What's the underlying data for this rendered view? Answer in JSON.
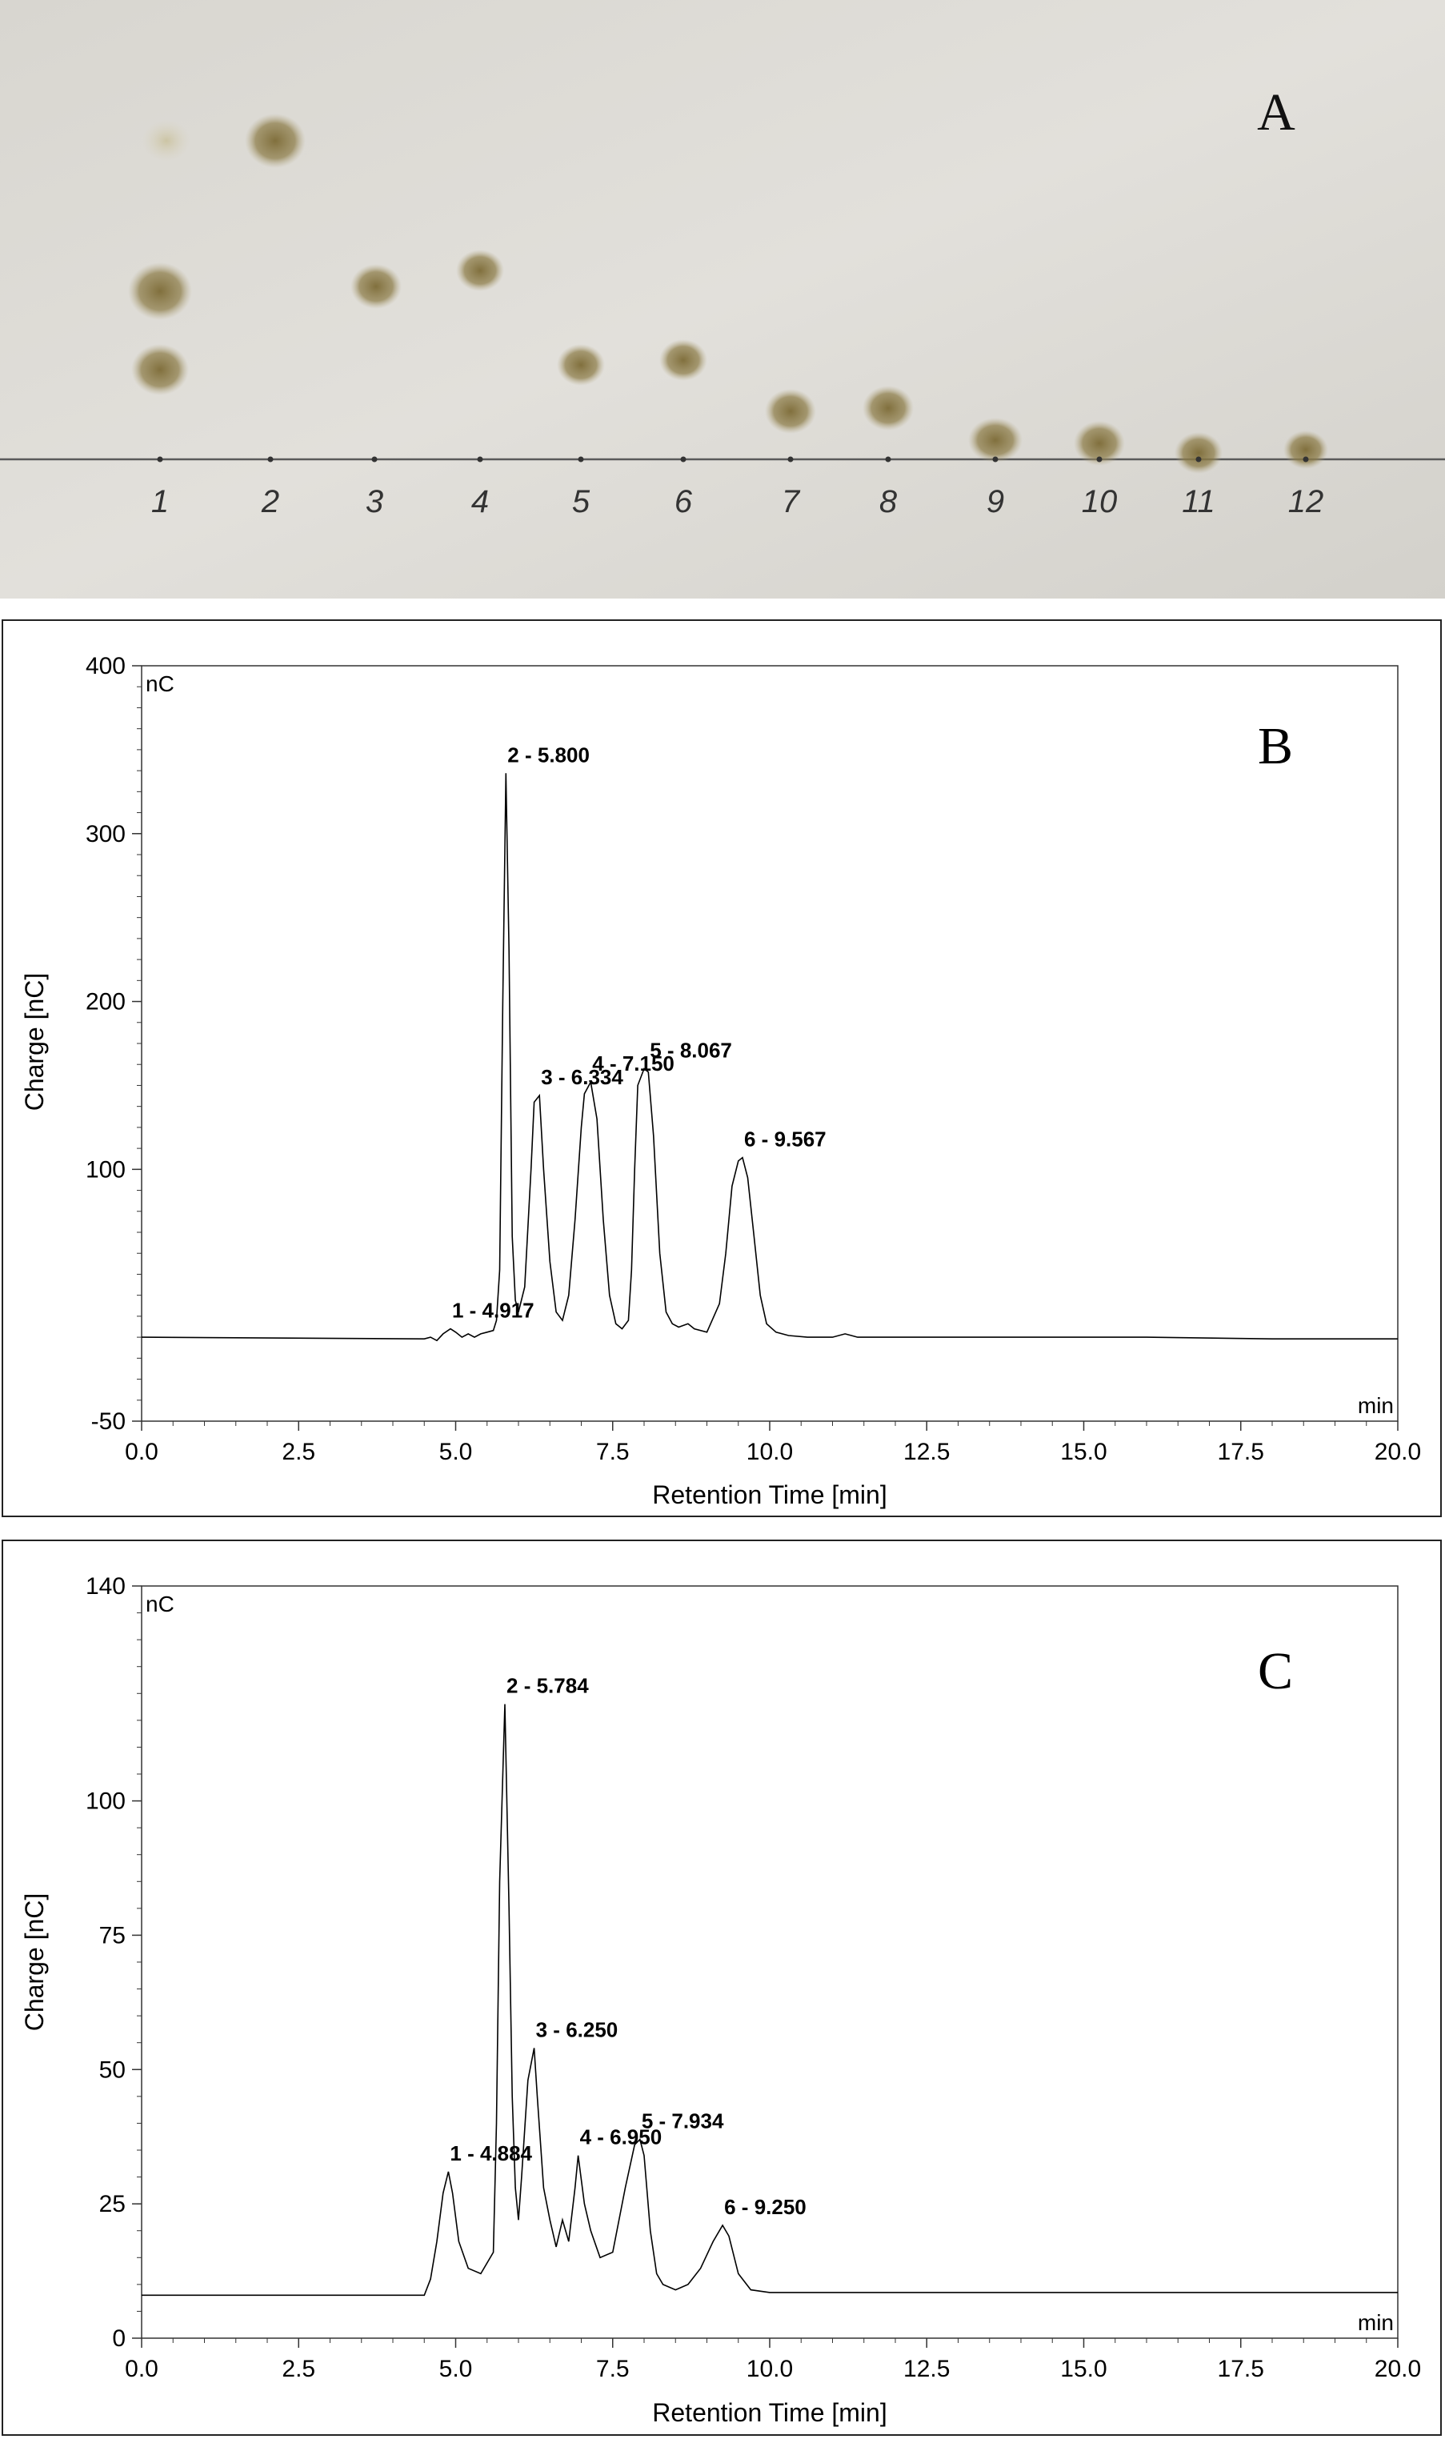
{
  "panel_a": {
    "label": "A",
    "lane_labels": [
      "1",
      "2",
      "3",
      "4",
      "5",
      "6",
      "7",
      "8",
      "9",
      "10",
      "11",
      "12"
    ],
    "colors": {
      "plate": "#dedcd6",
      "spot": "#8a7a45",
      "baseline": "#555555",
      "pencil": "#444444"
    }
  },
  "chart_data": [
    {
      "type": "line",
      "panel_label": "B",
      "y_unit": "nC",
      "x_unit": "min",
      "xlabel": "Retention Time [min]",
      "ylabel": "Charge [nC]",
      "xlim": [
        0.0,
        20.0
      ],
      "ylim": [
        -50,
        400
      ],
      "xticks": [
        0.0,
        2.5,
        5.0,
        7.5,
        10.0,
        12.5,
        15.0,
        17.5,
        20.0
      ],
      "xtick_labels": [
        "0.0",
        "2.5",
        "5.0",
        "7.5",
        "10.0",
        "12.5",
        "15.0",
        "17.5",
        "20.0"
      ],
      "yticks": [
        -50,
        100,
        200,
        300,
        400
      ],
      "ytick_labels": [
        "-50",
        "100",
        "200",
        "300",
        "400"
      ],
      "grid": false,
      "x": [
        0,
        4.5,
        4.6,
        4.7,
        4.8,
        4.917,
        5.0,
        5.1,
        5.2,
        5.3,
        5.4,
        5.5,
        5.6,
        5.65,
        5.7,
        5.75,
        5.8,
        5.85,
        5.9,
        5.95,
        6.0,
        6.1,
        6.2,
        6.25,
        6.334,
        6.4,
        6.5,
        6.6,
        6.7,
        6.8,
        6.9,
        7.0,
        7.05,
        7.15,
        7.25,
        7.35,
        7.45,
        7.55,
        7.65,
        7.75,
        7.8,
        7.85,
        7.9,
        8.0,
        8.067,
        8.15,
        8.25,
        8.35,
        8.45,
        8.55,
        8.7,
        8.8,
        9.0,
        9.2,
        9.3,
        9.4,
        9.5,
        9.567,
        9.65,
        9.75,
        9.85,
        9.95,
        10.1,
        10.3,
        10.6,
        11.0,
        11.2,
        11.3,
        11.4,
        11.8,
        12.5,
        14,
        16,
        18,
        20
      ],
      "values": [
        0,
        -1,
        0,
        -2,
        2,
        5,
        3,
        0,
        2,
        0,
        2,
        3,
        4,
        10,
        40,
        200,
        336,
        230,
        60,
        22,
        15,
        30,
        100,
        140,
        144,
        100,
        45,
        15,
        10,
        25,
        70,
        125,
        145,
        152,
        130,
        70,
        25,
        8,
        5,
        10,
        40,
        100,
        150,
        160,
        158,
        120,
        50,
        15,
        8,
        6,
        8,
        5,
        3,
        20,
        50,
        90,
        105,
        107,
        95,
        60,
        25,
        8,
        3,
        1,
        0,
        0,
        2,
        1,
        0,
        0,
        0,
        0,
        0,
        -1,
        -1
      ],
      "peak_labels": [
        {
          "text": "1 - 4.917",
          "x": 4.917,
          "y": 5
        },
        {
          "text": "2 - 5.800",
          "x": 5.8,
          "y": 336
        },
        {
          "text": "3 - 6.334",
          "x": 6.334,
          "y": 144
        },
        {
          "text": "4 - 7.150",
          "x": 7.15,
          "y": 152
        },
        {
          "text": "5 - 8.067",
          "x": 8.067,
          "y": 160
        },
        {
          "text": "6 - 9.567",
          "x": 9.567,
          "y": 107
        }
      ]
    },
    {
      "type": "line",
      "panel_label": "C",
      "y_unit": "nC",
      "x_unit": "min",
      "xlabel": "Retention Time [min]",
      "ylabel": "Charge [nC]",
      "xlim": [
        0.0,
        20.0
      ],
      "ylim": [
        0,
        140
      ],
      "xticks": [
        0.0,
        2.5,
        5.0,
        7.5,
        10.0,
        12.5,
        15.0,
        17.5,
        20.0
      ],
      "xtick_labels": [
        "0.0",
        "2.5",
        "5.0",
        "7.5",
        "10.0",
        "12.5",
        "15.0",
        "17.5",
        "20.0"
      ],
      "yticks": [
        0,
        25,
        50,
        75,
        100,
        140
      ],
      "ytick_labels": [
        "0",
        "25",
        "50",
        "75",
        "100",
        "140"
      ],
      "grid": false,
      "x": [
        0,
        4.5,
        4.6,
        4.7,
        4.8,
        4.884,
        4.95,
        5.05,
        5.2,
        5.4,
        5.6,
        5.65,
        5.7,
        5.784,
        5.85,
        5.9,
        5.95,
        6.0,
        6.05,
        6.15,
        6.25,
        6.3,
        6.4,
        6.5,
        6.6,
        6.7,
        6.8,
        6.9,
        6.95,
        7.05,
        7.15,
        7.3,
        7.5,
        7.7,
        7.85,
        7.934,
        8.0,
        8.1,
        8.2,
        8.3,
        8.5,
        8.7,
        8.9,
        9.1,
        9.25,
        9.35,
        9.5,
        9.7,
        10.0,
        11.0,
        12.0,
        14.0,
        16.0,
        18.0,
        20.0
      ],
      "values": [
        8,
        8,
        11,
        18,
        27,
        31,
        27,
        18,
        13,
        12,
        16,
        40,
        85,
        118,
        80,
        45,
        28,
        22,
        30,
        48,
        54,
        45,
        28,
        22,
        17,
        22,
        18,
        28,
        34,
        25,
        20,
        15,
        16,
        28,
        36,
        37,
        34,
        20,
        12,
        10,
        9,
        10,
        13,
        18,
        21,
        19,
        12,
        9,
        8.5,
        8.5,
        8.5,
        8.5,
        8.5,
        8.5,
        8.5
      ],
      "peak_labels": [
        {
          "text": "1 - 4.884",
          "x": 4.884,
          "y": 31
        },
        {
          "text": "2 - 5.784",
          "x": 5.784,
          "y": 118
        },
        {
          "text": "3 - 6.250",
          "x": 6.25,
          "y": 54
        },
        {
          "text": "4 - 6.950",
          "x": 6.95,
          "y": 34
        },
        {
          "text": "5 - 7.934",
          "x": 7.934,
          "y": 37
        },
        {
          "text": "6 - 9.250",
          "x": 9.25,
          "y": 21
        }
      ]
    }
  ]
}
